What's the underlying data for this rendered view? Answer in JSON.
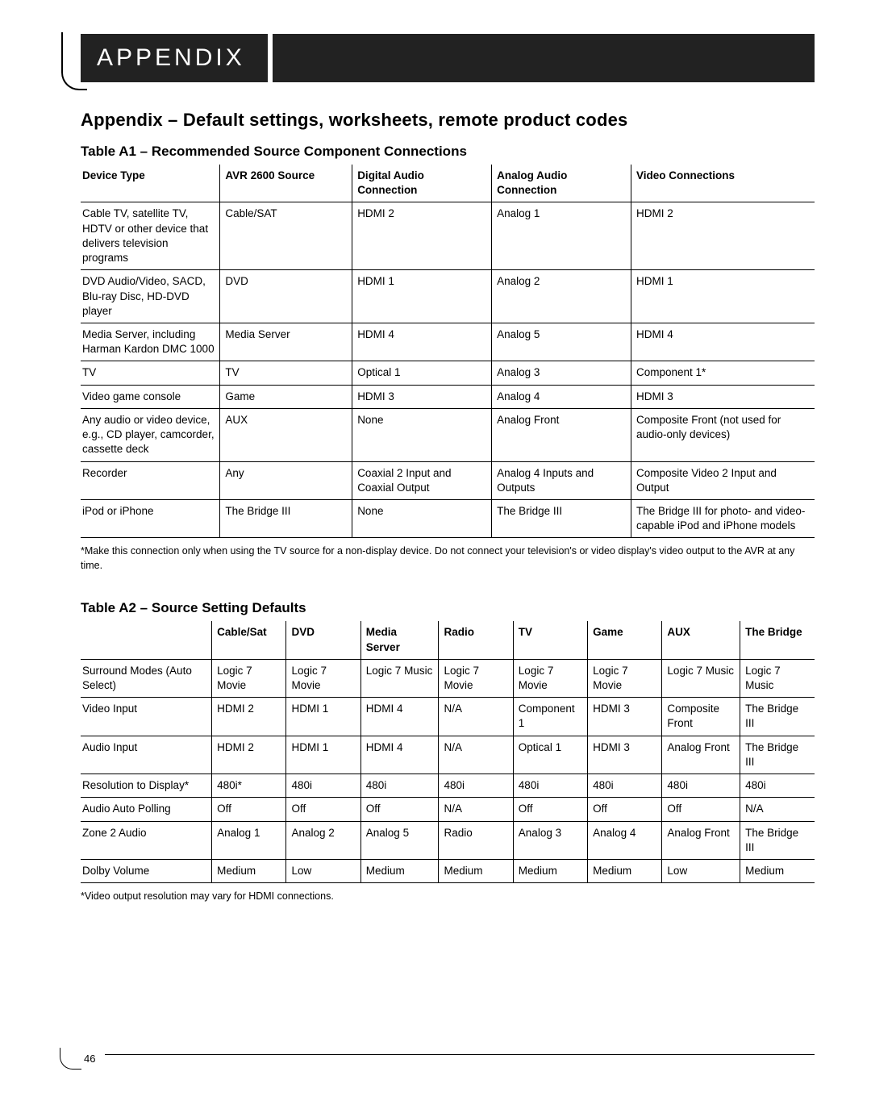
{
  "header": {
    "title": "APPENDIX"
  },
  "section_title": "Appendix – Default settings, worksheets, remote product codes",
  "tableA1": {
    "title": "Table A1 – Recommended Source Component Connections",
    "columns": [
      "Device Type",
      "AVR 2600 Source",
      "Digital Audio Connection",
      "Analog Audio Connection",
      "Video Connections"
    ],
    "col_widths": [
      "19%",
      "18%",
      "19%",
      "19%",
      "25%"
    ],
    "rows": [
      [
        "Cable TV, satellite TV, HDTV or other device that delivers television programs",
        "Cable/SAT",
        "HDMI 2",
        "Analog 1",
        "HDMI 2"
      ],
      [
        "DVD Audio/Video, SACD, Blu-ray Disc, HD-DVD player",
        "DVD",
        "HDMI 1",
        "Analog 2",
        "HDMI 1"
      ],
      [
        "Media Server, including Harman Kardon DMC 1000",
        "Media Server",
        "HDMI 4",
        "Analog 5",
        "HDMI 4"
      ],
      [
        "TV",
        "TV",
        "Optical 1",
        "Analog 3",
        "Component 1*"
      ],
      [
        "Video game console",
        "Game",
        "HDMI 3",
        "Analog 4",
        "HDMI 3"
      ],
      [
        "Any audio or video device, e.g., CD player, camcorder, cassette deck",
        "AUX",
        "None",
        "Analog Front",
        "Composite Front (not used for audio-only devices)"
      ],
      [
        "Recorder",
        "Any",
        "Coaxial 2 Input and Coaxial Output",
        "Analog 4 Inputs and Outputs",
        "Composite Video 2 Input and Output"
      ],
      [
        "iPod or iPhone",
        "The Bridge III",
        "None",
        "The Bridge III",
        "The Bridge III for photo- and video-capable iPod and iPhone models"
      ]
    ],
    "footnote": "*Make this connection only when using the TV source for a non-display device. Do not connect your television's or video display's video output to the AVR at any time."
  },
  "tableA2": {
    "title": "Table A2 – Source Setting Defaults",
    "columns": [
      "",
      "Cable/Sat",
      "DVD",
      "Media Server",
      "Radio",
      "TV",
      "Game",
      "AUX",
      "The Bridge"
    ],
    "col_widths": [
      "18.5%",
      "10.5%",
      "10.5%",
      "11%",
      "10.5%",
      "10.5%",
      "10.5%",
      "11%",
      "10.5%"
    ],
    "rows": [
      [
        "Surround Modes (Auto Select)",
        "Logic 7 Movie",
        "Logic 7 Movie",
        "Logic 7 Music",
        "Logic 7 Movie",
        "Logic 7 Movie",
        "Logic 7 Movie",
        "Logic 7 Music",
        "Logic 7 Music"
      ],
      [
        "Video Input",
        "HDMI 2",
        "HDMI 1",
        "HDMI 4",
        "N/A",
        "Component 1",
        "HDMI 3",
        "Composite Front",
        "The Bridge III"
      ],
      [
        "Audio Input",
        "HDMI 2",
        "HDMI 1",
        "HDMI 4",
        "N/A",
        "Optical 1",
        "HDMI 3",
        "Analog Front",
        "The Bridge III"
      ],
      [
        "Resolution to Display*",
        "480i*",
        "480i",
        "480i",
        "480i",
        "480i",
        "480i",
        "480i",
        "480i"
      ],
      [
        "Audio Auto Polling",
        "Off",
        "Off",
        "Off",
        "N/A",
        "Off",
        "Off",
        "Off",
        "N/A"
      ],
      [
        "Zone 2 Audio",
        "Analog 1",
        "Analog 2",
        "Analog 5",
        "Radio",
        "Analog 3",
        "Analog 4",
        "Analog Front",
        "The Bridge III"
      ],
      [
        "Dolby Volume",
        "Medium",
        "Low",
        "Medium",
        "Medium",
        "Medium",
        "Medium",
        "Low",
        "Medium"
      ]
    ],
    "footnote": "*Video output resolution may vary for HDMI connections."
  },
  "page_number": "46"
}
